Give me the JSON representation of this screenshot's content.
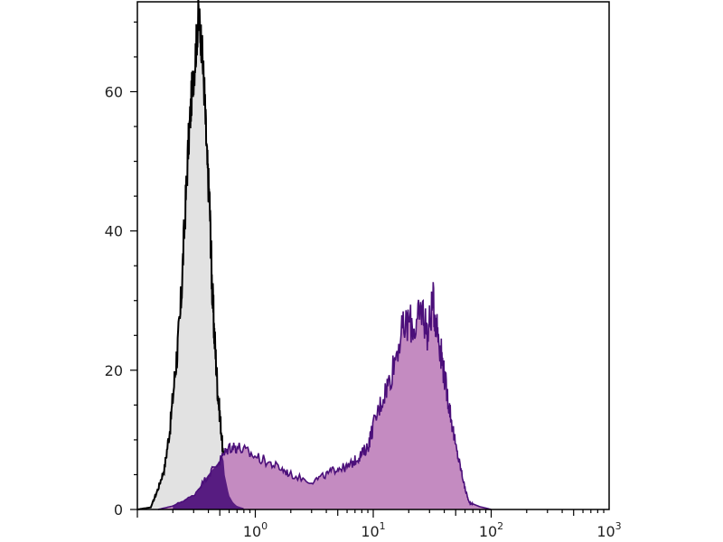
{
  "chart_data": {
    "type": "area",
    "title": "",
    "xlabel": "",
    "ylabel": "",
    "x_scale": "log",
    "xlim": [
      0.1,
      1000
    ],
    "ylim": [
      0,
      72
    ],
    "grid": false,
    "legend": "none",
    "x_ticks": [
      {
        "base": "10",
        "exp": "0",
        "value": 1
      },
      {
        "base": "10",
        "exp": "1",
        "value": 10
      },
      {
        "base": "10",
        "exp": "2",
        "value": 100
      },
      {
        "base": "10",
        "exp": "3",
        "value": 1000
      }
    ],
    "y_ticks": [
      {
        "label": "0",
        "value": 0
      },
      {
        "label": "20",
        "value": 20
      },
      {
        "label": "40",
        "value": 40
      },
      {
        "label": "60",
        "value": 60
      }
    ],
    "series": [
      {
        "fill": "#e2e2e2",
        "stroke": "#000000",
        "x": [
          0.1,
          0.13,
          0.15,
          0.17,
          0.19,
          0.21,
          0.23,
          0.25,
          0.27,
          0.29,
          0.31,
          0.33,
          0.35,
          0.37,
          0.39,
          0.41,
          0.43,
          0.45,
          0.48,
          0.51,
          0.55,
          0.6,
          0.65,
          0.7,
          0.8,
          0.9
        ],
        "y": [
          0,
          0.3,
          3,
          6,
          12,
          20,
          27,
          40,
          52,
          60,
          65,
          71,
          67,
          60,
          50,
          44,
          32,
          25,
          17,
          12,
          5,
          2,
          1,
          0.5,
          0.2,
          0
        ]
      },
      {
        "fill": "#c48bc1",
        "stroke": "#4b0f7a",
        "x": [
          0.15,
          0.2,
          0.3,
          0.4,
          0.5,
          0.6,
          0.7,
          0.9,
          1.2,
          1.6,
          2,
          3,
          4,
          5,
          6,
          7,
          8,
          9,
          10,
          12,
          14,
          17,
          20,
          23,
          26,
          29,
          32,
          35,
          38,
          41,
          45,
          50,
          55,
          60,
          65,
          70,
          80,
          90,
          100
        ],
        "y": [
          0,
          0.5,
          2,
          5,
          7,
          9,
          9,
          8,
          7,
          6,
          5,
          4,
          5,
          6,
          6,
          7,
          8,
          9,
          12,
          16,
          19,
          25,
          27,
          26,
          29,
          25,
          30,
          26,
          22,
          18,
          14,
          9,
          6,
          3,
          1,
          0.8,
          0.4,
          0.2,
          0
        ]
      }
    ]
  }
}
